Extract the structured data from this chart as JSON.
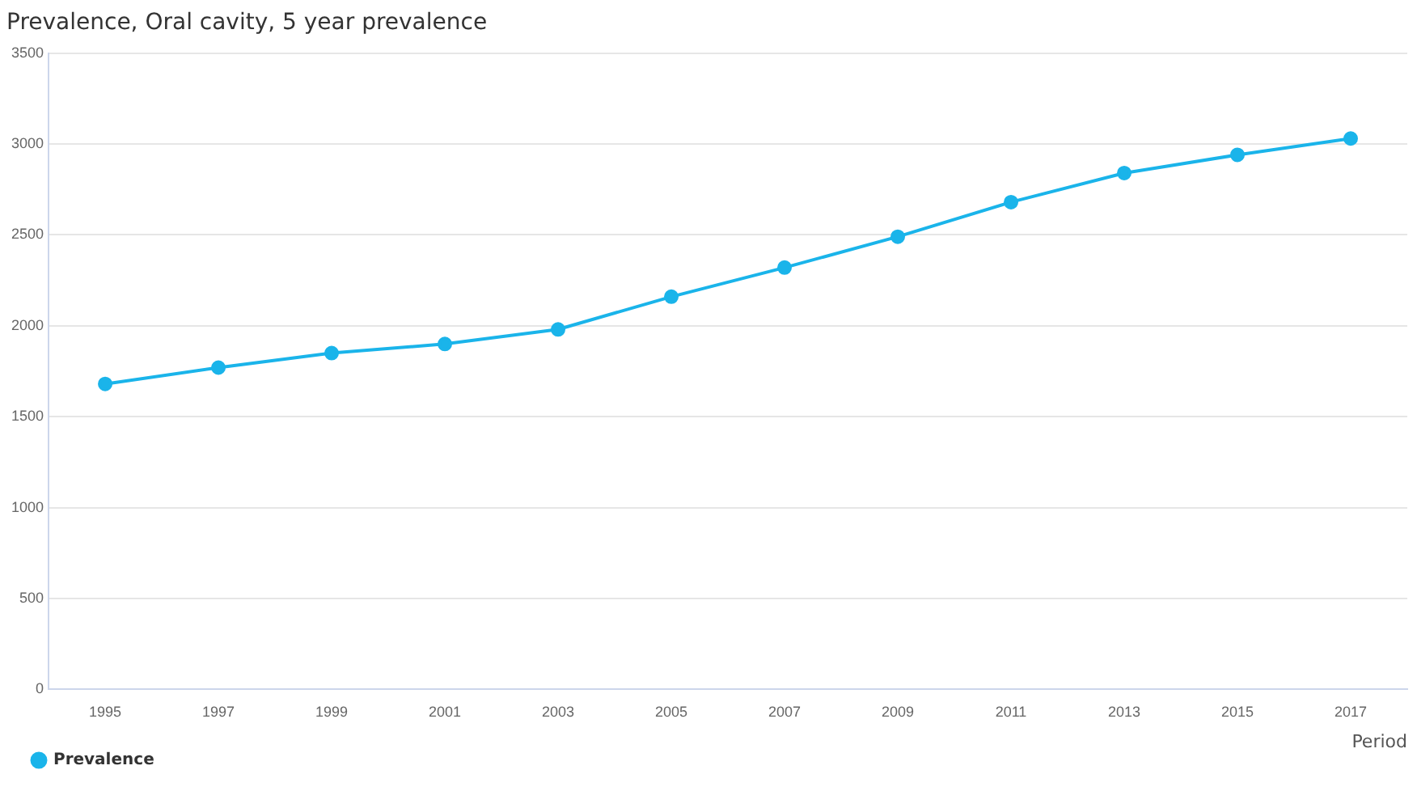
{
  "chart_data": {
    "type": "line",
    "title": "Prevalence, Oral cavity, 5 year prevalence",
    "xlabel": "Period",
    "categories": [
      "1995",
      "1997",
      "1999",
      "2001",
      "2003",
      "2005",
      "2007",
      "2009",
      "2011",
      "2013",
      "2015",
      "2017"
    ],
    "series": [
      {
        "name": "Prevalence",
        "color": "#1ab4ea",
        "values": [
          1680,
          1770,
          1850,
          1900,
          1980,
          2160,
          2320,
          2490,
          2680,
          2840,
          2940,
          3030
        ]
      }
    ],
    "ylim": [
      0,
      3500
    ],
    "yticks": [
      0,
      500,
      1000,
      1500,
      2000,
      2500,
      3000,
      3500
    ],
    "grid": "y",
    "legend": "bottom left",
    "marker": "circle",
    "line_style": "solid"
  }
}
